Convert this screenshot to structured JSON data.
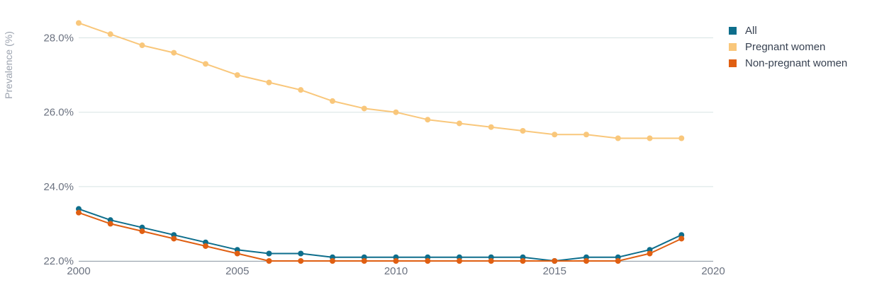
{
  "chart_data": {
    "type": "line",
    "title": "",
    "xlabel": "",
    "ylabel": "Prevalence (%)",
    "xlim": [
      2000,
      2020
    ],
    "ylim": [
      22.0,
      28.6
    ],
    "x_ticks": [
      2000,
      2005,
      2010,
      2015,
      2020
    ],
    "x_tick_labels": [
      "2000",
      "2005",
      "2010",
      "2015",
      "2020"
    ],
    "y_ticks": [
      22,
      24,
      26,
      28
    ],
    "y_tick_labels": [
      "22.0%",
      "24.0%",
      "26.0%",
      "28.0%"
    ],
    "grid": "horizontal",
    "legend_position": "right",
    "x": [
      2000,
      2001,
      2002,
      2003,
      2004,
      2005,
      2006,
      2007,
      2008,
      2009,
      2010,
      2011,
      2012,
      2013,
      2014,
      2015,
      2016,
      2017,
      2018,
      2019
    ],
    "series": [
      {
        "name": "All",
        "color": "#0e6e8c",
        "values": [
          23.4,
          23.1,
          22.9,
          22.7,
          22.5,
          22.3,
          22.2,
          22.2,
          22.1,
          22.1,
          22.1,
          22.1,
          22.1,
          22.1,
          22.1,
          22.0,
          22.1,
          22.1,
          22.3,
          22.7
        ]
      },
      {
        "name": "Pregnant women",
        "color": "#f9c77b",
        "values": [
          28.4,
          28.1,
          27.8,
          27.6,
          27.3,
          27.0,
          26.8,
          26.6,
          26.3,
          26.1,
          26.0,
          25.8,
          25.7,
          25.6,
          25.5,
          25.4,
          25.4,
          25.3,
          25.3,
          25.3
        ]
      },
      {
        "name": "Non-pregnant women",
        "color": "#e05f12",
        "values": [
          23.3,
          23.0,
          22.8,
          22.6,
          22.4,
          22.2,
          22.0,
          22.0,
          22.0,
          22.0,
          22.0,
          22.0,
          22.0,
          22.0,
          22.0,
          22.0,
          22.0,
          22.0,
          22.2,
          22.6
        ]
      }
    ]
  }
}
